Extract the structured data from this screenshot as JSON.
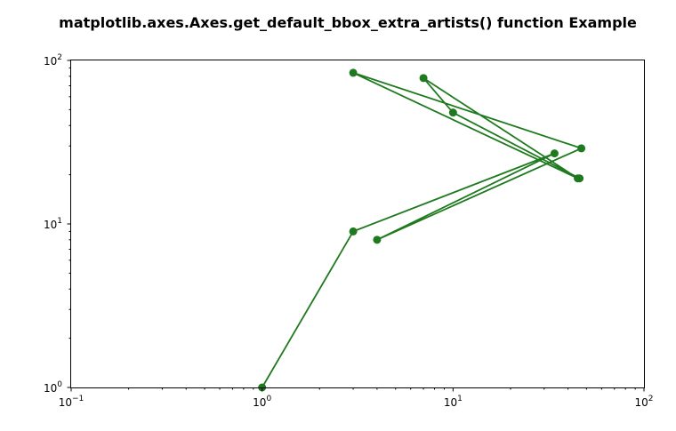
{
  "chart_data": {
    "type": "line",
    "title": "matplotlib.axes.Axes.get_default_bbox_extra_artists() function Example",
    "xlabel": "",
    "ylabel": "",
    "xscale": "log",
    "yscale": "log",
    "xlim": [
      0.1,
      100
    ],
    "ylim": [
      1,
      100
    ],
    "x_ticks": [
      {
        "base": "10",
        "exp": "−1"
      },
      {
        "base": "10",
        "exp": "0"
      },
      {
        "base": "10",
        "exp": "1"
      },
      {
        "base": "10",
        "exp": "2"
      }
    ],
    "y_ticks": [
      {
        "base": "10",
        "exp": "0"
      },
      {
        "base": "10",
        "exp": "1"
      },
      {
        "base": "10",
        "exp": "2"
      }
    ],
    "grid": false,
    "series": [
      {
        "color": "#1f7a1f",
        "marker": "circle",
        "x": [
          1,
          3,
          34,
          4,
          47,
          3,
          45,
          7,
          10,
          46
        ],
        "y": [
          1,
          9,
          27,
          8,
          29,
          84,
          19,
          78,
          48,
          19
        ]
      }
    ]
  }
}
